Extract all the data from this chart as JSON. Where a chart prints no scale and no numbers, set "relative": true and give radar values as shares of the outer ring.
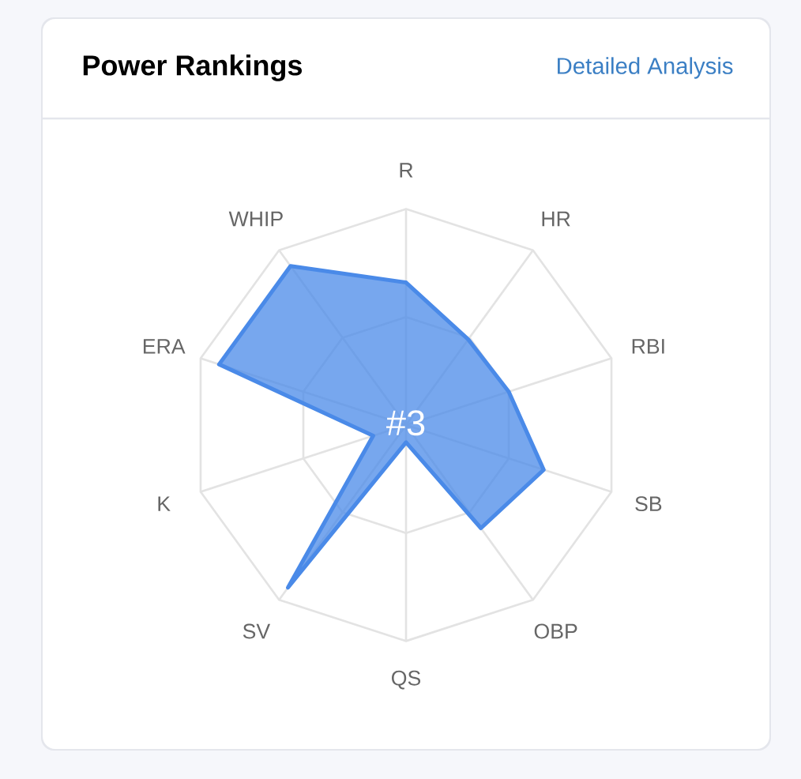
{
  "chart_data": {
    "type": "radar",
    "title": "Power Rankings",
    "categories": [
      "R",
      "HR",
      "RBI",
      "SB",
      "OBP",
      "QS",
      "SV",
      "K",
      "ERA",
      "WHIP"
    ],
    "relative": true,
    "series": [
      {
        "color": "#4a8ae8",
        "values": [
          0.66,
          0.49,
          0.5,
          0.67,
          0.59,
          0.08,
          0.93,
          0.16,
          0.91,
          0.91
        ]
      }
    ],
    "grid": true,
    "annotations": [
      "Detailed Analysis",
      "#3"
    ]
  }
}
